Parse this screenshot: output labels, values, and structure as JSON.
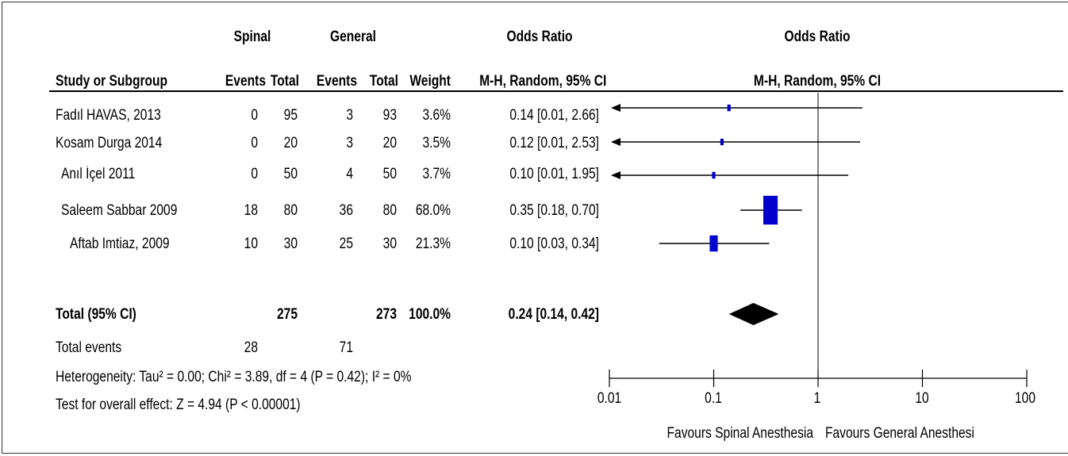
{
  "headers": {
    "group1": "Spinal",
    "group2": "General",
    "or_group": "Odds Ratio",
    "or_sub": "M-H, Random, 95% CI",
    "plot_group": "Odds Ratio",
    "plot_sub": "M-H, Random, 95% CI",
    "study": "Study or Subgroup",
    "events1": "Events",
    "total1": "Total",
    "events2": "Events",
    "total2": "Total",
    "weight": "Weight"
  },
  "studies": [
    {
      "name": "Fadıl HAVAS, 2013",
      "e1": "0",
      "t1": "95",
      "e2": "3",
      "t2": "93",
      "weight": "3.6%",
      "ci_text": "0.14 [0.01, 2.66]"
    },
    {
      "name": "Kosam Durga 2014",
      "e1": "0",
      "t1": "20",
      "e2": "3",
      "t2": "20",
      "weight": "3.5%",
      "ci_text": "0.12 [0.01, 2.53]"
    },
    {
      "name": "Anıl İçel 2011",
      "e1": "0",
      "t1": "50",
      "e2": "4",
      "t2": "50",
      "weight": "3.7%",
      "ci_text": "0.10 [0.01, 1.95]"
    },
    {
      "name": "Saleem Sabbar 2009",
      "e1": "18",
      "t1": "80",
      "e2": "36",
      "t2": "80",
      "weight": "68.0%",
      "ci_text": "0.35 [0.18, 0.70]"
    },
    {
      "name": "Aftab Imtiaz, 2009",
      "e1": "10",
      "t1": "30",
      "e2": "25",
      "t2": "30",
      "weight": "21.3%",
      "ci_text": "0.10 [0.03, 0.34]"
    }
  ],
  "total": {
    "label": "Total (95% CI)",
    "t1": "275",
    "t2": "273",
    "weight": "100.0%",
    "ci_text": "0.24 [0.14, 0.42]"
  },
  "total_events": {
    "label": "Total events",
    "e1": "28",
    "e2": "71"
  },
  "heterogeneity": "Heterogeneity: Tau² = 0.00; Chi² = 3.89, df = 4 (P = 0.42); I² = 0%",
  "overall_effect": "Test for overall effect: Z = 4.94 (P < 0.00001)",
  "axis": {
    "ticks": [
      "0.01",
      "0.1",
      "1",
      "10",
      "100"
    ],
    "favours_left": "Favours Spinal Anesthesia",
    "favours_right": "Favours General Anesthesi"
  },
  "colors": {
    "marker": "#0000cc",
    "line": "#000000",
    "diamond": "#000000"
  },
  "chart_data": {
    "type": "forest",
    "scale": "log",
    "xlim": [
      0.01,
      100
    ],
    "tick_values": [
      0.01,
      0.1,
      1,
      10,
      100
    ],
    "series": [
      {
        "name": "Fadıl HAVAS, 2013",
        "or": 0.14,
        "lower": 0.01,
        "upper": 2.66,
        "weight": 3.6
      },
      {
        "name": "Kosam Durga 2014",
        "or": 0.12,
        "lower": 0.01,
        "upper": 2.53,
        "weight": 3.5
      },
      {
        "name": "Anıl İçel 2011",
        "or": 0.1,
        "lower": 0.01,
        "upper": 1.95,
        "weight": 3.7
      },
      {
        "name": "Saleem Sabbar 2009",
        "or": 0.35,
        "lower": 0.18,
        "upper": 0.7,
        "weight": 68.0
      },
      {
        "name": "Aftab Imtiaz, 2009",
        "or": 0.1,
        "lower": 0.03,
        "upper": 0.34,
        "weight": 21.3
      }
    ],
    "pooled": {
      "or": 0.24,
      "lower": 0.14,
      "upper": 0.42,
      "weight": 100.0
    }
  }
}
